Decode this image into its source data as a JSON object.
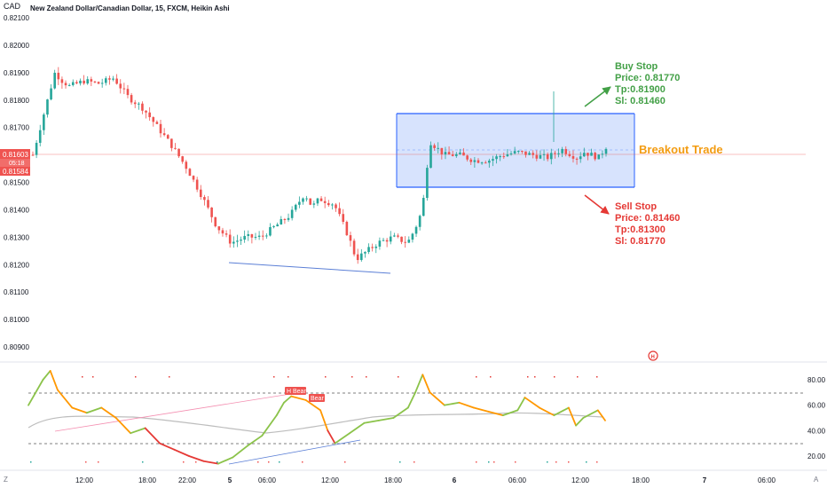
{
  "header": {
    "currency": "CAD",
    "title": "New Zealand Dollar/Canadian Dollar, 15, FXCM, Heikin Ashi"
  },
  "price_axis": {
    "ticks": [
      "0.82100",
      "0.82000",
      "0.81900",
      "0.81800",
      "0.81700",
      "0.81500",
      "0.81400",
      "0.81300",
      "0.81200",
      "0.81100",
      "0.81000",
      "0.80900"
    ],
    "current_price": "0.81603",
    "countdown": "05:18",
    "second_price": "0.81584"
  },
  "indicator_axis": {
    "ticks": [
      "80.00",
      "60.00",
      "40.00",
      "20.00"
    ]
  },
  "time_axis": {
    "ticks": [
      "12:00",
      "18:00",
      "22:00",
      "5",
      "06:00",
      "12:00",
      "18:00",
      "6",
      "06:00",
      "12:00",
      "18:00",
      "7",
      "06:00"
    ],
    "left_marker": "Z",
    "right_marker": "A"
  },
  "annotations": {
    "buy_stop": {
      "title": "Buy Stop",
      "price": "Price: 0.81770",
      "tp": "Tp:0.81900",
      "sl": "Sl: 0.81460"
    },
    "sell_stop": {
      "title": "Sell Stop",
      "price": "Price: 0.81460",
      "tp": "Tp:0.81300",
      "sl": "Sl: 0.81770"
    },
    "breakout_label": "Breakout Trade",
    "hi_bear_label": "H Bear",
    "bear_label": "Bear",
    "event_marker": "H"
  },
  "colors": {
    "bull": "#26a69a",
    "bear": "#ef5350",
    "box_fill": "#c9dafc",
    "box_line": "#2962ff",
    "buy_text": "#43a047",
    "sell_text": "#e53935",
    "breakout": "#f39c12",
    "trend_line": "#5b7fd6"
  },
  "chart_data": [
    {
      "type": "candlestick",
      "title": "New Zealand Dollar/Canadian Dollar, 15, FXCM, Heikin Ashi",
      "ylim": [
        0.8085,
        0.8212
      ],
      "x_ticks": [
        "12:00",
        "18:00",
        "22:00",
        "5",
        "06:00",
        "12:00",
        "18:00",
        "6",
        "06:00",
        "12:00",
        "18:00",
        "7",
        "06:00"
      ],
      "y_ticks": [
        0.821,
        0.82,
        0.819,
        0.818,
        0.817,
        0.815,
        0.814,
        0.813,
        0.812,
        0.811,
        0.81,
        0.809
      ],
      "close_path": [
        [
          0,
          0.816
        ],
        [
          4,
          0.818
        ],
        [
          6,
          0.819
        ],
        [
          8,
          0.8187
        ],
        [
          10,
          0.8185
        ],
        [
          14,
          0.8187
        ],
        [
          18,
          0.8186
        ],
        [
          22,
          0.8188
        ],
        [
          26,
          0.8181
        ],
        [
          30,
          0.8177
        ],
        [
          34,
          0.817
        ],
        [
          38,
          0.8163
        ],
        [
          42,
          0.8155
        ],
        [
          46,
          0.8145
        ],
        [
          50,
          0.8134
        ],
        [
          54,
          0.8128
        ],
        [
          58,
          0.813
        ],
        [
          62,
          0.813
        ],
        [
          66,
          0.8134
        ],
        [
          70,
          0.8138
        ],
        [
          74,
          0.8146
        ],
        [
          76,
          0.8141
        ],
        [
          78,
          0.8144
        ],
        [
          82,
          0.8142
        ],
        [
          86,
          0.813
        ],
        [
          88,
          0.8122
        ],
        [
          90,
          0.8124
        ],
        [
          94,
          0.8128
        ],
        [
          98,
          0.813
        ],
        [
          102,
          0.8128
        ],
        [
          104,
          0.8133
        ],
        [
          106,
          0.814
        ],
        [
          108,
          0.8165
        ],
        [
          112,
          0.816
        ],
        [
          116,
          0.816
        ],
        [
          120,
          0.8158
        ],
        [
          124,
          0.8158
        ],
        [
          128,
          0.816
        ],
        [
          132,
          0.8161
        ],
        [
          136,
          0.816
        ],
        [
          140,
          0.8159
        ],
        [
          144,
          0.8162
        ],
        [
          148,
          0.8159
        ],
        [
          150,
          0.8161
        ],
        [
          154,
          0.8159
        ],
        [
          156,
          0.8163
        ]
      ],
      "breakout_box": {
        "upper": 0.8177,
        "lower": 0.8146
      },
      "current_price": 0.81603,
      "lower_trendline": [
        [
          0.812,
          0.8116
        ]
      ]
    },
    {
      "type": "line",
      "name": "",
      "ylim": [
        0,
        100
      ],
      "y_ticks": [
        80,
        60,
        40,
        20
      ],
      "levels": [
        70,
        30
      ],
      "oscillator_path": [
        [
          0,
          60
        ],
        [
          4,
          80
        ],
        [
          6,
          87
        ],
        [
          8,
          72
        ],
        [
          12,
          58
        ],
        [
          16,
          54
        ],
        [
          20,
          58
        ],
        [
          24,
          50
        ],
        [
          28,
          38
        ],
        [
          32,
          42
        ],
        [
          36,
          30
        ],
        [
          40,
          25
        ],
        [
          44,
          20
        ],
        [
          48,
          16
        ],
        [
          52,
          14
        ],
        [
          56,
          19
        ],
        [
          60,
          28
        ],
        [
          64,
          36
        ],
        [
          68,
          52
        ],
        [
          70,
          62
        ],
        [
          72,
          67
        ],
        [
          76,
          64
        ],
        [
          80,
          56
        ],
        [
          82,
          40
        ],
        [
          84,
          30
        ],
        [
          88,
          38
        ],
        [
          92,
          46
        ],
        [
          96,
          48
        ],
        [
          100,
          50
        ],
        [
          104,
          58
        ],
        [
          106,
          70
        ],
        [
          108,
          84
        ],
        [
          110,
          70
        ],
        [
          114,
          60
        ],
        [
          118,
          62
        ],
        [
          122,
          58
        ],
        [
          126,
          55
        ],
        [
          130,
          52
        ],
        [
          134,
          56
        ],
        [
          136,
          66
        ],
        [
          140,
          58
        ],
        [
          144,
          52
        ],
        [
          148,
          58
        ],
        [
          150,
          44
        ],
        [
          152,
          50
        ],
        [
          156,
          56
        ],
        [
          158,
          48
        ]
      ]
    }
  ]
}
